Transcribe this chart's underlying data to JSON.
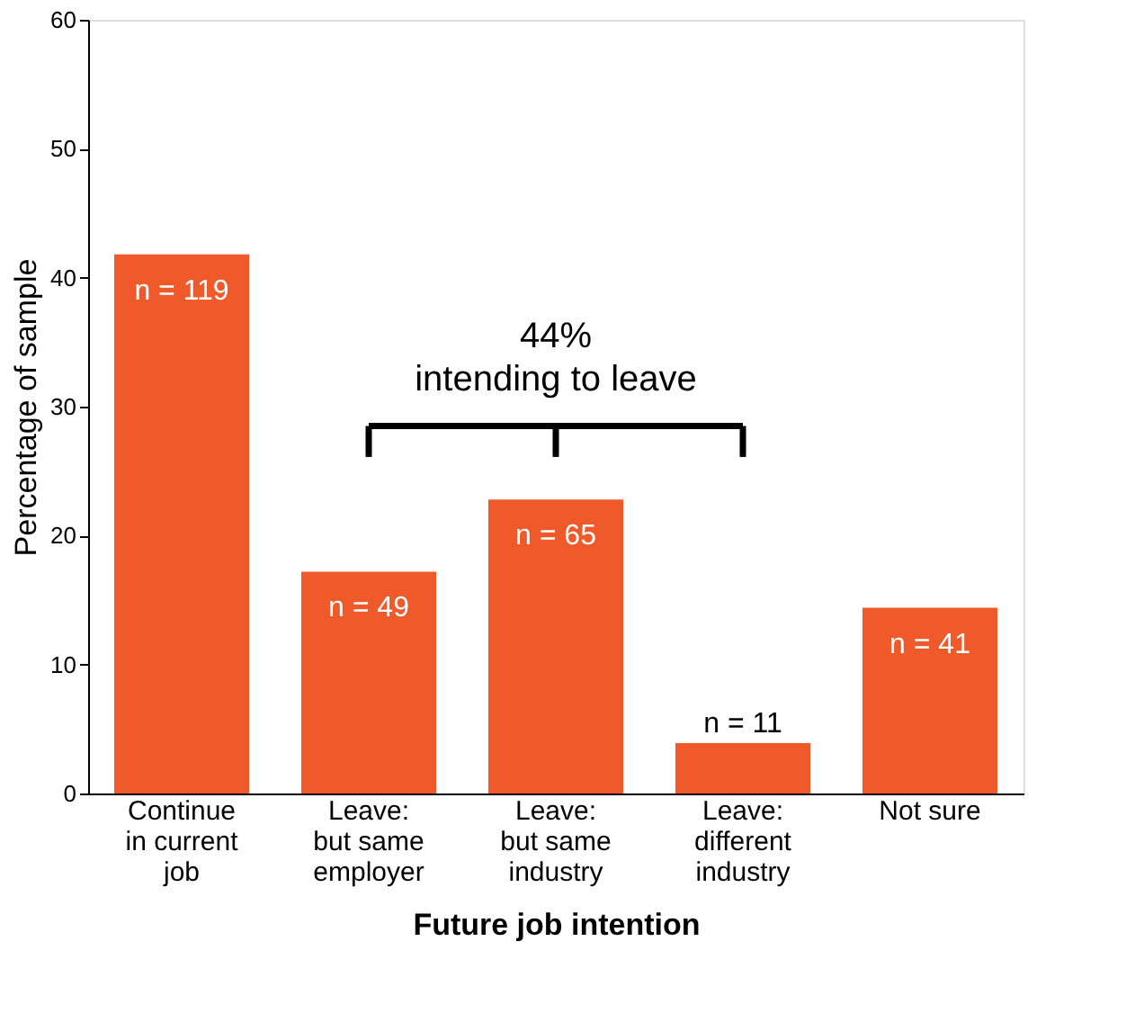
{
  "chart_data": {
    "type": "bar",
    "categories": [
      "Continue\nin current\njob",
      "Leave:\nbut same\nemployer",
      "Leave:\nbut same\nindustry",
      "Leave:\ndifferent\nindustry",
      "Not sure"
    ],
    "values": [
      41.8,
      17.2,
      22.8,
      3.9,
      14.4
    ],
    "color": "#f05a2a",
    "xlabel": "Future job intention",
    "ylabel": "Percentage of sample",
    "ylim": [
      0,
      60
    ],
    "yticks": [
      0,
      10,
      20,
      30,
      40,
      50,
      60
    ],
    "annotations": [
      "44%\nintending to leave",
      {
        "text": "n = 119",
        "x": "Continue\nin current\njob",
        "y": 41.8
      },
      {
        "text": "n = 49",
        "x": "Leave:\nbut same\nemployer",
        "y": 17.2
      },
      {
        "text": "n = 65",
        "x": "Leave:\nbut same\nindustry",
        "y": 22.8
      },
      {
        "text": "n = 11",
        "x": "Leave:\ndifferent\nindustry",
        "y": 3.9
      },
      {
        "text": "n = 41",
        "x": "Not sure",
        "y": 14.4
      }
    ],
    "grid": false
  }
}
